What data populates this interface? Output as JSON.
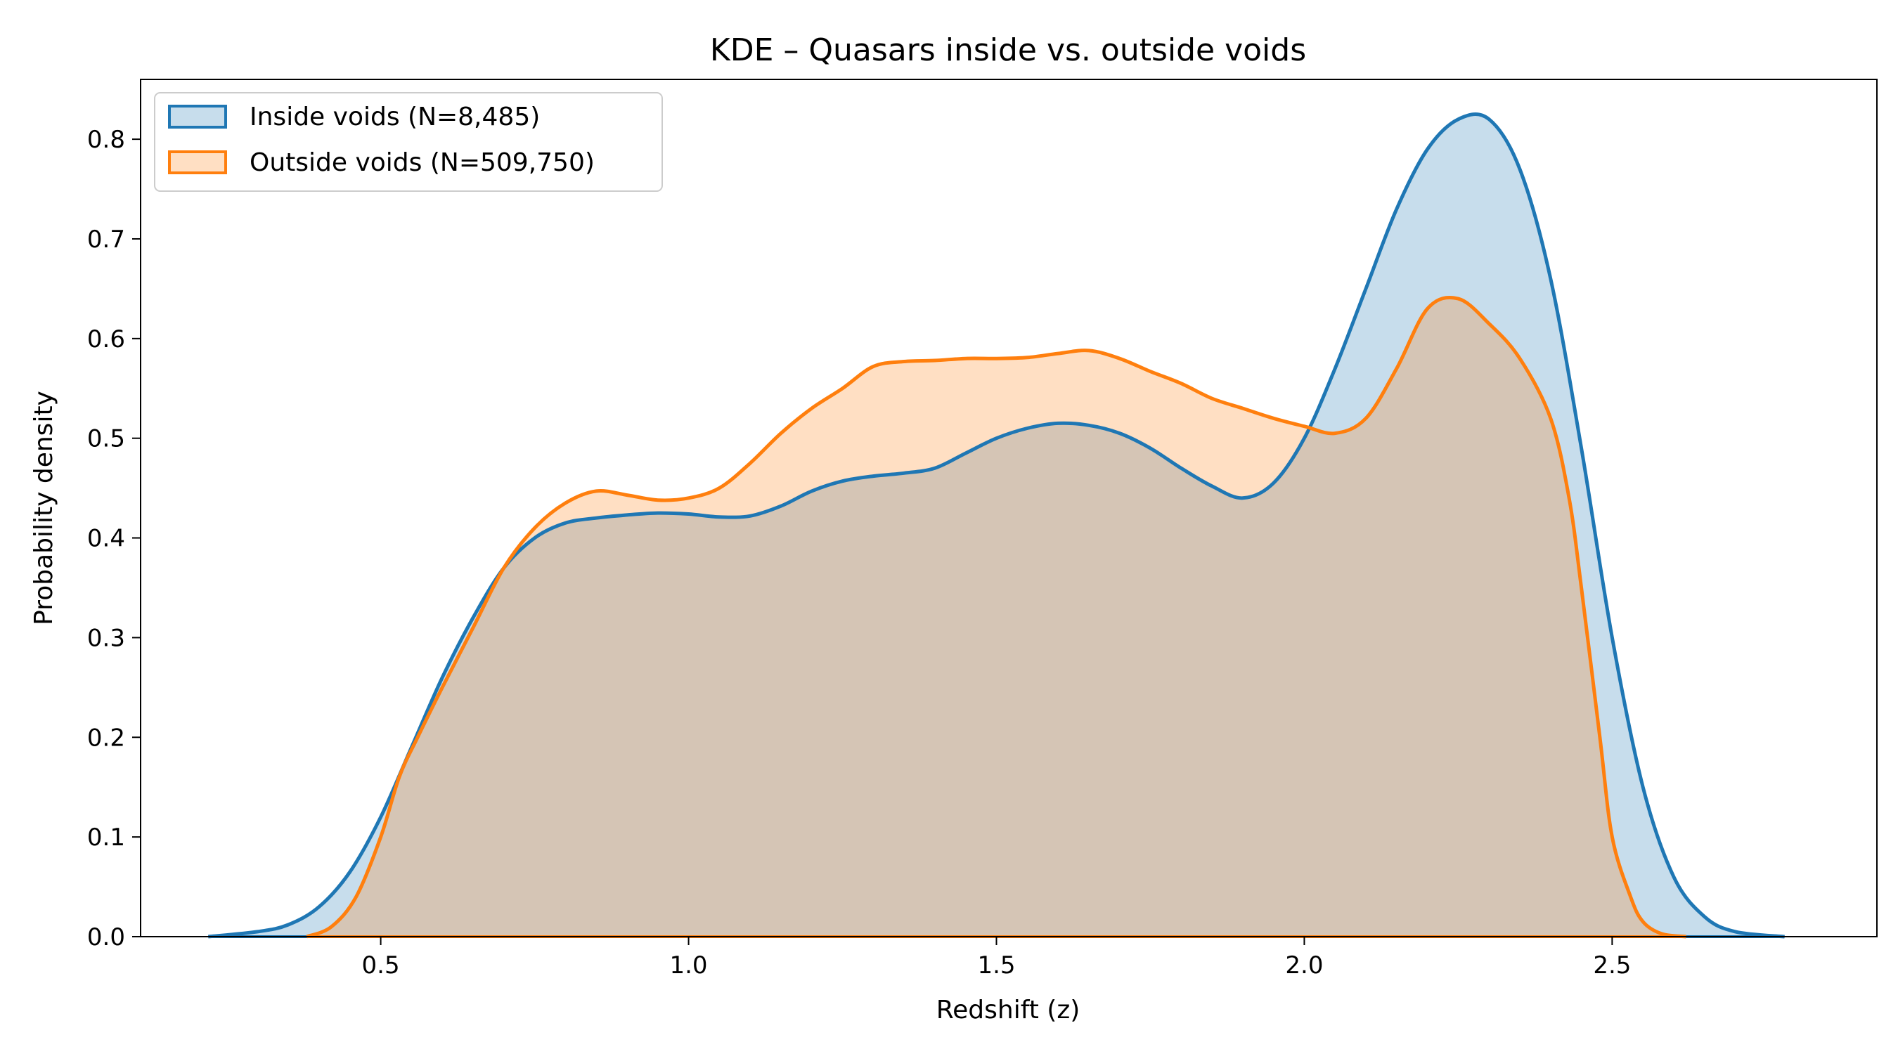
{
  "chart_data": {
    "type": "area",
    "title": "KDE – Quasars inside vs. outside voids",
    "xlabel": "Redshift (z)",
    "ylabel": "Probability density",
    "xlim": [
      0.11,
      2.93
    ],
    "ylim": [
      0.0,
      0.86
    ],
    "xticks": [
      0.5,
      1.0,
      1.5,
      2.0,
      2.5
    ],
    "xtick_labels": [
      "0.5",
      "1.0",
      "1.5",
      "2.0",
      "2.5"
    ],
    "yticks": [
      0.0,
      0.1,
      0.2,
      0.3,
      0.4,
      0.5,
      0.6,
      0.7,
      0.8
    ],
    "ytick_labels": [
      "0.0",
      "0.1",
      "0.2",
      "0.3",
      "0.4",
      "0.5",
      "0.6",
      "0.7",
      "0.8"
    ],
    "legend_position": "top-left",
    "grid": false,
    "series": [
      {
        "name": "Inside voids (N=8,485)",
        "color": "#1f77b4",
        "x": [
          0.22,
          0.3,
          0.35,
          0.4,
          0.45,
          0.5,
          0.55,
          0.6,
          0.65,
          0.7,
          0.75,
          0.8,
          0.85,
          0.9,
          0.95,
          1.0,
          1.05,
          1.1,
          1.15,
          1.2,
          1.25,
          1.3,
          1.35,
          1.4,
          1.45,
          1.5,
          1.55,
          1.6,
          1.65,
          1.7,
          1.75,
          1.8,
          1.85,
          1.9,
          1.95,
          2.0,
          2.05,
          2.1,
          2.15,
          2.2,
          2.25,
          2.3,
          2.35,
          2.4,
          2.45,
          2.5,
          2.55,
          2.6,
          2.65,
          2.7,
          2.78
        ],
        "y": [
          0.0,
          0.005,
          0.012,
          0.03,
          0.065,
          0.12,
          0.19,
          0.26,
          0.32,
          0.37,
          0.4,
          0.415,
          0.42,
          0.423,
          0.425,
          0.424,
          0.421,
          0.422,
          0.432,
          0.447,
          0.457,
          0.462,
          0.465,
          0.47,
          0.485,
          0.5,
          0.51,
          0.515,
          0.513,
          0.505,
          0.49,
          0.47,
          0.452,
          0.44,
          0.455,
          0.5,
          0.57,
          0.65,
          0.73,
          0.79,
          0.82,
          0.82,
          0.77,
          0.66,
          0.49,
          0.3,
          0.15,
          0.06,
          0.02,
          0.005,
          0.0
        ]
      },
      {
        "name": "Outside voids (N=509,750)",
        "color": "#ff7f0e",
        "x": [
          0.38,
          0.42,
          0.46,
          0.5,
          0.53,
          0.56,
          0.6,
          0.65,
          0.7,
          0.75,
          0.8,
          0.85,
          0.9,
          0.95,
          1.0,
          1.05,
          1.1,
          1.15,
          1.2,
          1.25,
          1.3,
          1.35,
          1.4,
          1.45,
          1.5,
          1.55,
          1.6,
          1.65,
          1.7,
          1.75,
          1.8,
          1.85,
          1.9,
          1.95,
          2.0,
          2.05,
          2.1,
          2.15,
          2.2,
          2.25,
          2.3,
          2.35,
          2.4,
          2.43,
          2.45,
          2.48,
          2.5,
          2.53,
          2.55,
          2.58,
          2.62
        ],
        "y": [
          0.0,
          0.01,
          0.04,
          0.1,
          0.16,
          0.2,
          0.25,
          0.31,
          0.37,
          0.41,
          0.435,
          0.447,
          0.443,
          0.438,
          0.44,
          0.45,
          0.475,
          0.505,
          0.53,
          0.55,
          0.572,
          0.577,
          0.578,
          0.58,
          0.58,
          0.581,
          0.585,
          0.588,
          0.58,
          0.567,
          0.555,
          0.54,
          0.53,
          0.52,
          0.512,
          0.505,
          0.52,
          0.57,
          0.63,
          0.64,
          0.615,
          0.58,
          0.52,
          0.44,
          0.35,
          0.2,
          0.1,
          0.04,
          0.015,
          0.003,
          0.0
        ]
      }
    ]
  }
}
